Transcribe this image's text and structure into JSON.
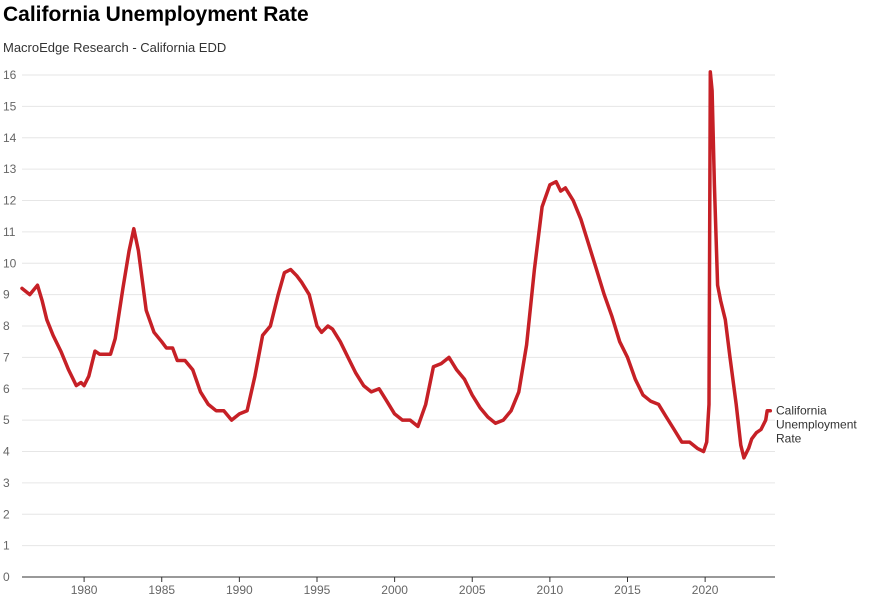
{
  "chart_data": {
    "type": "line",
    "title": "California Unemployment Rate",
    "subtitle": "MacroEdge Research - California EDD",
    "xlabel": "",
    "ylabel": "",
    "xlim": [
      1976,
      2024.5
    ],
    "ylim": [
      0,
      16
    ],
    "x_ticks": [
      1980,
      1985,
      1990,
      1995,
      2000,
      2005,
      2010,
      2015,
      2020
    ],
    "y_ticks": [
      0,
      1,
      2,
      3,
      4,
      5,
      6,
      7,
      8,
      9,
      10,
      11,
      12,
      13,
      14,
      15,
      16
    ],
    "grid": "horizontal",
    "colors": {
      "line": "#c62026",
      "grid": "#e6e6e6",
      "axis": "#333333"
    },
    "series": [
      {
        "name": "California Unemployment Rate",
        "label": "California Unemployment Rate",
        "x": [
          1976.0,
          1976.5,
          1977.0,
          1977.3,
          1977.6,
          1978.0,
          1978.5,
          1979.0,
          1979.5,
          1979.8,
          1980.0,
          1980.3,
          1980.7,
          1981.0,
          1981.3,
          1981.7,
          1982.0,
          1982.5,
          1982.9,
          1983.2,
          1983.5,
          1984.0,
          1984.5,
          1985.0,
          1985.3,
          1985.7,
          1986.0,
          1986.5,
          1987.0,
          1987.5,
          1988.0,
          1988.5,
          1989.0,
          1989.5,
          1990.0,
          1990.5,
          1991.0,
          1991.5,
          1992.0,
          1992.5,
          1992.9,
          1993.3,
          1993.7,
          1994.0,
          1994.5,
          1995.0,
          1995.3,
          1995.7,
          1996.0,
          1996.5,
          1997.0,
          1997.5,
          1998.0,
          1998.5,
          1999.0,
          1999.5,
          2000.0,
          2000.5,
          2001.0,
          2001.5,
          2002.0,
          2002.5,
          2003.0,
          2003.5,
          2004.0,
          2004.5,
          2005.0,
          2005.5,
          2006.0,
          2006.5,
          2007.0,
          2007.5,
          2008.0,
          2008.5,
          2009.0,
          2009.5,
          2010.0,
          2010.4,
          2010.7,
          2011.0,
          2011.5,
          2012.0,
          2012.5,
          2013.0,
          2013.5,
          2014.0,
          2014.5,
          2015.0,
          2015.5,
          2016.0,
          2016.5,
          2017.0,
          2017.5,
          2018.0,
          2018.5,
          2019.0,
          2019.5,
          2019.9,
          2020.1,
          2020.25,
          2020.33,
          2020.45,
          2020.6,
          2020.8,
          2021.0,
          2021.3,
          2021.6,
          2022.0,
          2022.3,
          2022.5,
          2022.8,
          2023.0,
          2023.3,
          2023.6,
          2023.9,
          2024.0,
          2024.2
        ],
        "values": [
          9.2,
          9.0,
          9.3,
          8.8,
          8.2,
          7.7,
          7.2,
          6.6,
          6.1,
          6.2,
          6.1,
          6.4,
          7.2,
          7.1,
          7.1,
          7.1,
          7.6,
          9.2,
          10.4,
          11.1,
          10.4,
          8.5,
          7.8,
          7.5,
          7.3,
          7.3,
          6.9,
          6.9,
          6.6,
          5.9,
          5.5,
          5.3,
          5.3,
          5.0,
          5.2,
          5.3,
          6.4,
          7.7,
          8.0,
          9.0,
          9.7,
          9.8,
          9.6,
          9.4,
          9.0,
          8.0,
          7.8,
          8.0,
          7.9,
          7.5,
          7.0,
          6.5,
          6.1,
          5.9,
          6.0,
          5.6,
          5.2,
          5.0,
          5.0,
          4.8,
          5.5,
          6.7,
          6.8,
          7.0,
          6.6,
          6.3,
          5.8,
          5.4,
          5.1,
          4.9,
          5.0,
          5.3,
          5.9,
          7.4,
          9.8,
          11.8,
          12.5,
          12.6,
          12.3,
          12.4,
          12.0,
          11.4,
          10.6,
          9.8,
          9.0,
          8.3,
          7.5,
          7.0,
          6.3,
          5.8,
          5.6,
          5.5,
          5.1,
          4.7,
          4.3,
          4.3,
          4.1,
          4.0,
          4.3,
          5.5,
          16.1,
          15.5,
          12.5,
          9.3,
          8.8,
          8.2,
          7.0,
          5.5,
          4.2,
          3.8,
          4.1,
          4.4,
          4.6,
          4.7,
          5.0,
          5.3,
          5.3
        ]
      }
    ]
  }
}
